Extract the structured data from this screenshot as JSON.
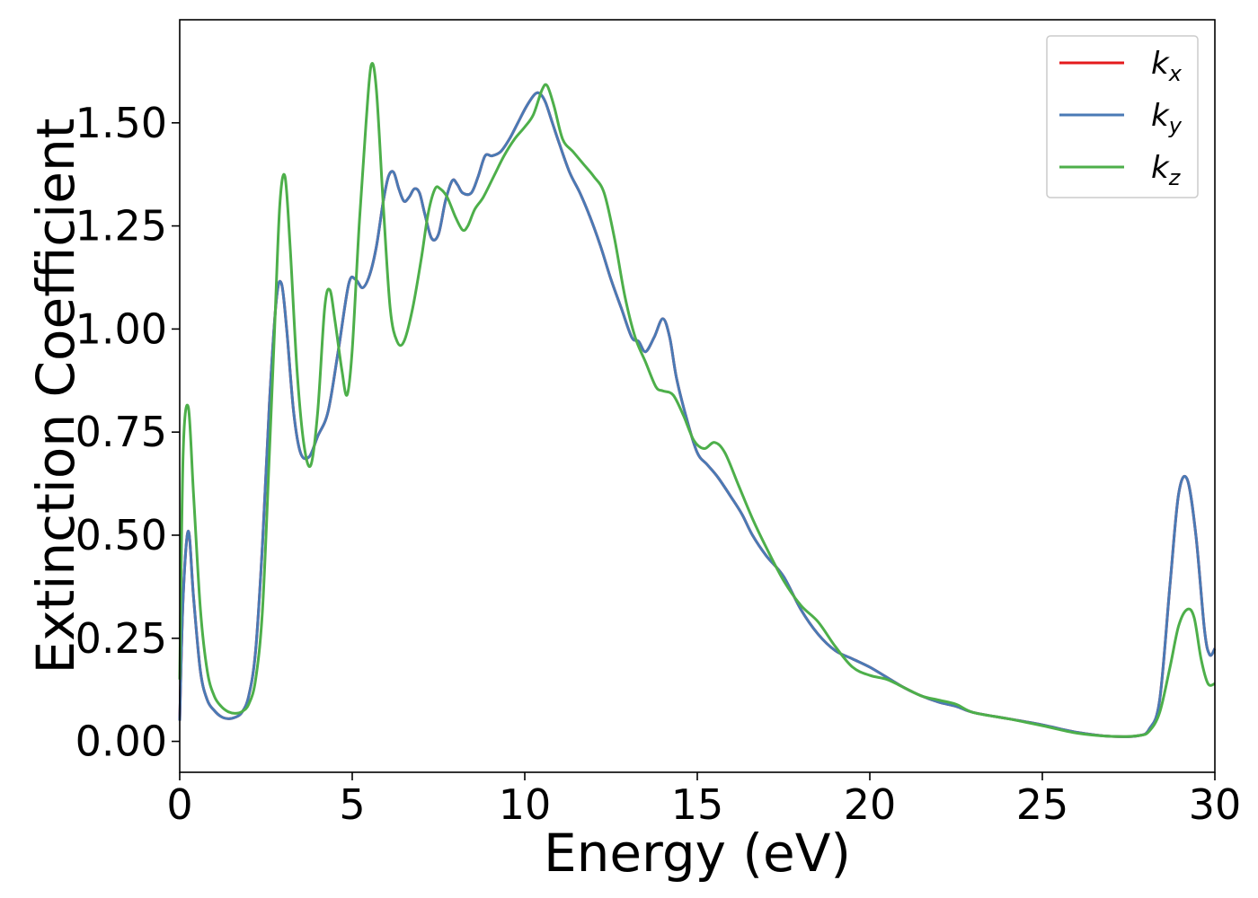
{
  "chart_data": {
    "type": "line",
    "xlabel": "Energy (eV)",
    "ylabel": "Extinction Coefficient",
    "xlim": [
      0,
      30
    ],
    "ylim": [
      -0.075,
      1.75
    ],
    "xticks": [
      0,
      5,
      10,
      15,
      20,
      25,
      30
    ],
    "xtick_labels": [
      "0",
      "5",
      "10",
      "15",
      "20",
      "25",
      "30"
    ],
    "yticks": [
      0.0,
      0.25,
      0.5,
      0.75,
      1.0,
      1.25,
      1.5
    ],
    "ytick_labels": [
      "0.00",
      "0.25",
      "0.50",
      "0.75",
      "1.00",
      "1.25",
      "1.50"
    ],
    "grid": false,
    "legend_position": "top-right",
    "series": [
      {
        "name": "k_x",
        "label_main": "k",
        "label_sub": "x",
        "color": "#e41a1c",
        "x": [
          0,
          0.1,
          0.25,
          0.4,
          0.6,
          0.8,
          1.0,
          1.2,
          1.4,
          1.6,
          1.8,
          2.0,
          2.2,
          2.4,
          2.6,
          2.8,
          2.95,
          3.1,
          3.3,
          3.5,
          3.75,
          4.0,
          4.3,
          4.6,
          4.9,
          5.1,
          5.3,
          5.5,
          5.7,
          5.9,
          6.05,
          6.2,
          6.35,
          6.5,
          6.65,
          6.8,
          6.95,
          7.1,
          7.3,
          7.5,
          7.7,
          7.9,
          8.05,
          8.2,
          8.45,
          8.65,
          8.85,
          9.05,
          9.3,
          9.55,
          9.8,
          10.05,
          10.3,
          10.45,
          10.6,
          10.8,
          11.0,
          11.3,
          11.6,
          11.9,
          12.2,
          12.5,
          12.8,
          13.1,
          13.3,
          13.5,
          13.75,
          14.0,
          14.2,
          14.4,
          14.7,
          15.0,
          15.3,
          15.6,
          16.0,
          16.3,
          16.6,
          17.0,
          17.5,
          18.0,
          18.5,
          19.0,
          19.5,
          20.0,
          20.5,
          21.0,
          21.5,
          22.0,
          22.5,
          23.0,
          24.0,
          25.0,
          26.0,
          27.0,
          27.8,
          28.1,
          28.4,
          28.7,
          28.95,
          29.2,
          29.45,
          29.7,
          29.85,
          30.0
        ],
        "values": [
          0.05,
          0.35,
          0.51,
          0.35,
          0.17,
          0.1,
          0.075,
          0.06,
          0.055,
          0.058,
          0.07,
          0.11,
          0.22,
          0.48,
          0.82,
          1.07,
          1.11,
          1.0,
          0.8,
          0.7,
          0.69,
          0.74,
          0.8,
          0.95,
          1.11,
          1.12,
          1.1,
          1.13,
          1.2,
          1.31,
          1.37,
          1.38,
          1.34,
          1.31,
          1.32,
          1.34,
          1.33,
          1.28,
          1.22,
          1.23,
          1.31,
          1.36,
          1.35,
          1.33,
          1.33,
          1.37,
          1.42,
          1.42,
          1.43,
          1.46,
          1.5,
          1.54,
          1.57,
          1.57,
          1.55,
          1.5,
          1.45,
          1.38,
          1.33,
          1.27,
          1.2,
          1.12,
          1.05,
          0.98,
          0.97,
          0.945,
          0.98,
          1.025,
          0.98,
          0.88,
          0.78,
          0.7,
          0.67,
          0.64,
          0.59,
          0.55,
          0.5,
          0.45,
          0.4,
          0.32,
          0.26,
          0.22,
          0.2,
          0.18,
          0.155,
          0.13,
          0.11,
          0.095,
          0.085,
          0.07,
          0.055,
          0.04,
          0.022,
          0.012,
          0.014,
          0.03,
          0.1,
          0.38,
          0.6,
          0.635,
          0.5,
          0.27,
          0.21,
          0.225
        ]
      },
      {
        "name": "k_y",
        "label_main": "k",
        "label_sub": "y",
        "color": "#4a7ab5",
        "x": [
          0,
          0.1,
          0.25,
          0.4,
          0.6,
          0.8,
          1.0,
          1.2,
          1.4,
          1.6,
          1.8,
          2.0,
          2.2,
          2.4,
          2.6,
          2.8,
          2.95,
          3.1,
          3.3,
          3.5,
          3.75,
          4.0,
          4.3,
          4.6,
          4.9,
          5.1,
          5.3,
          5.5,
          5.7,
          5.9,
          6.05,
          6.2,
          6.35,
          6.5,
          6.65,
          6.8,
          6.95,
          7.1,
          7.3,
          7.5,
          7.7,
          7.9,
          8.05,
          8.2,
          8.45,
          8.65,
          8.85,
          9.05,
          9.3,
          9.55,
          9.8,
          10.05,
          10.3,
          10.45,
          10.6,
          10.8,
          11.0,
          11.3,
          11.6,
          11.9,
          12.2,
          12.5,
          12.8,
          13.1,
          13.3,
          13.5,
          13.75,
          14.0,
          14.2,
          14.4,
          14.7,
          15.0,
          15.3,
          15.6,
          16.0,
          16.3,
          16.6,
          17.0,
          17.5,
          18.0,
          18.5,
          19.0,
          19.5,
          20.0,
          20.5,
          21.0,
          21.5,
          22.0,
          22.5,
          23.0,
          24.0,
          25.0,
          26.0,
          27.0,
          27.8,
          28.1,
          28.4,
          28.7,
          28.95,
          29.2,
          29.45,
          29.7,
          29.85,
          30.0
        ],
        "values": [
          0.05,
          0.35,
          0.51,
          0.35,
          0.17,
          0.1,
          0.075,
          0.06,
          0.055,
          0.058,
          0.07,
          0.11,
          0.22,
          0.48,
          0.82,
          1.07,
          1.11,
          1.0,
          0.8,
          0.7,
          0.69,
          0.74,
          0.8,
          0.95,
          1.11,
          1.12,
          1.1,
          1.13,
          1.2,
          1.31,
          1.37,
          1.38,
          1.34,
          1.31,
          1.32,
          1.34,
          1.33,
          1.28,
          1.22,
          1.23,
          1.31,
          1.36,
          1.35,
          1.33,
          1.33,
          1.37,
          1.42,
          1.42,
          1.43,
          1.46,
          1.5,
          1.54,
          1.57,
          1.57,
          1.55,
          1.5,
          1.45,
          1.38,
          1.33,
          1.27,
          1.2,
          1.12,
          1.05,
          0.98,
          0.97,
          0.945,
          0.98,
          1.025,
          0.98,
          0.88,
          0.78,
          0.7,
          0.67,
          0.64,
          0.59,
          0.55,
          0.5,
          0.45,
          0.4,
          0.32,
          0.26,
          0.22,
          0.2,
          0.18,
          0.155,
          0.13,
          0.11,
          0.095,
          0.085,
          0.07,
          0.055,
          0.04,
          0.022,
          0.012,
          0.014,
          0.03,
          0.1,
          0.38,
          0.6,
          0.635,
          0.5,
          0.27,
          0.21,
          0.225
        ]
      },
      {
        "name": "k_z",
        "label_main": "k",
        "label_sub": "z",
        "color": "#4daf4a",
        "x": [
          0,
          0.1,
          0.25,
          0.4,
          0.6,
          0.8,
          1.0,
          1.2,
          1.4,
          1.6,
          1.8,
          2.0,
          2.2,
          2.4,
          2.6,
          2.75,
          2.9,
          3.05,
          3.2,
          3.4,
          3.6,
          3.8,
          4.0,
          4.2,
          4.35,
          4.5,
          4.7,
          4.85,
          5.0,
          5.2,
          5.4,
          5.55,
          5.7,
          5.9,
          6.1,
          6.3,
          6.5,
          6.75,
          7.0,
          7.2,
          7.4,
          7.55,
          7.75,
          8.0,
          8.2,
          8.35,
          8.55,
          8.8,
          9.1,
          9.4,
          9.7,
          10.0,
          10.25,
          10.5,
          10.65,
          10.85,
          11.1,
          11.4,
          11.7,
          12.0,
          12.3,
          12.6,
          12.9,
          13.2,
          13.5,
          13.8,
          14.0,
          14.3,
          14.6,
          14.9,
          15.2,
          15.5,
          15.8,
          16.2,
          16.6,
          17.0,
          17.5,
          18.0,
          18.5,
          19.0,
          19.5,
          20.0,
          20.5,
          21.0,
          21.5,
          22.0,
          22.5,
          23.0,
          24.0,
          25.0,
          26.0,
          27.0,
          27.8,
          28.1,
          28.4,
          28.7,
          28.95,
          29.2,
          29.4,
          29.6,
          29.8,
          30.0
        ],
        "values": [
          0.15,
          0.7,
          0.81,
          0.6,
          0.32,
          0.17,
          0.11,
          0.085,
          0.072,
          0.068,
          0.072,
          0.09,
          0.15,
          0.32,
          0.7,
          1.0,
          1.3,
          1.37,
          1.2,
          0.9,
          0.72,
          0.67,
          0.8,
          1.05,
          1.095,
          1.02,
          0.9,
          0.84,
          0.95,
          1.25,
          1.5,
          1.64,
          1.58,
          1.3,
          1.05,
          0.97,
          0.97,
          1.05,
          1.17,
          1.28,
          1.34,
          1.34,
          1.32,
          1.27,
          1.24,
          1.25,
          1.29,
          1.32,
          1.37,
          1.42,
          1.46,
          1.49,
          1.52,
          1.58,
          1.59,
          1.54,
          1.46,
          1.43,
          1.4,
          1.37,
          1.33,
          1.22,
          1.08,
          0.98,
          0.92,
          0.86,
          0.85,
          0.84,
          0.79,
          0.73,
          0.71,
          0.725,
          0.7,
          0.62,
          0.54,
          0.47,
          0.39,
          0.33,
          0.29,
          0.23,
          0.18,
          0.16,
          0.15,
          0.13,
          0.11,
          0.1,
          0.09,
          0.07,
          0.055,
          0.038,
          0.02,
          0.012,
          0.014,
          0.025,
          0.07,
          0.18,
          0.28,
          0.32,
          0.3,
          0.2,
          0.14,
          0.14
        ]
      }
    ]
  }
}
